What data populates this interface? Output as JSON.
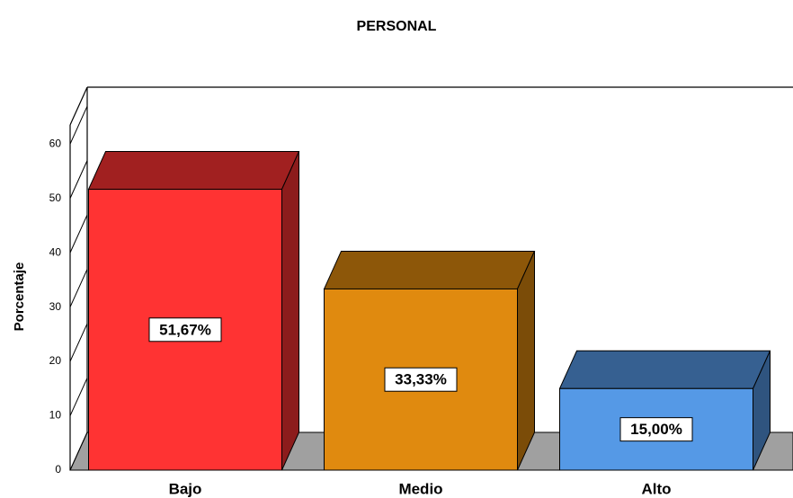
{
  "chart_data": {
    "type": "bar3d",
    "title": "PERSONAL",
    "y_label": "Porcentaje",
    "categories": [
      "Bajo",
      "Medio",
      "Alto"
    ],
    "values": [
      51.67,
      33.33,
      15.0
    ],
    "value_labels": [
      "51,67%",
      "33,33%",
      "15,00%"
    ],
    "colors": [
      "#ff3333",
      "#e08a0f",
      "#5599e6"
    ],
    "ylim": [
      0,
      63.5
    ],
    "yticks": [
      0,
      10,
      20,
      30,
      40,
      50,
      60
    ]
  }
}
